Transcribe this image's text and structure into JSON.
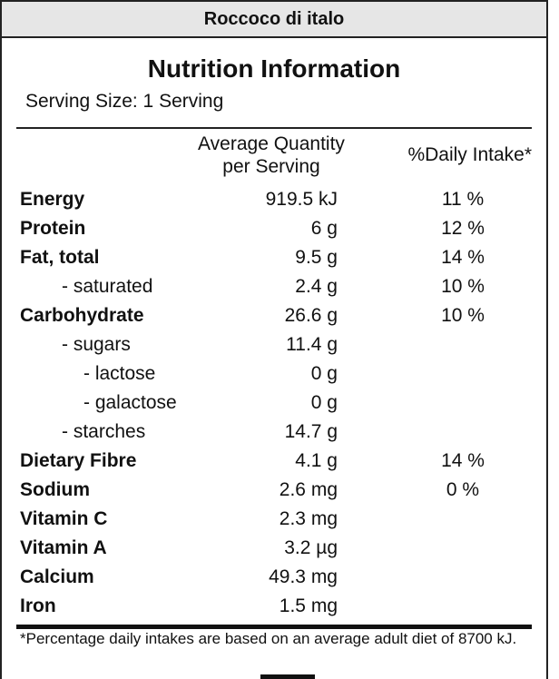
{
  "product_name": "Roccoco di italo",
  "title": "Nutrition Information",
  "serving_size": "Serving Size: 1 Serving",
  "headers": {
    "quantity_line1": "Average Quantity",
    "quantity_line2": "per Serving",
    "daily_intake": "%Daily Intake*"
  },
  "rows": [
    {
      "name": "Energy",
      "qty": "919.5 kJ",
      "di": "11 %"
    },
    {
      "name": "Protein",
      "qty": "6 g",
      "di": "12 %"
    },
    {
      "name": "Fat, total",
      "qty": "9.5 g",
      "di": "14 %"
    },
    {
      "name": "- saturated",
      "qty": "2.4 g",
      "di": "10 %"
    },
    {
      "name": "Carbohydrate",
      "qty": "26.6 g",
      "di": "10 %"
    },
    {
      "name": "- sugars",
      "qty": "11.4 g",
      "di": ""
    },
    {
      "name": "- lactose",
      "qty": "0 g",
      "di": ""
    },
    {
      "name": "- galactose",
      "qty": "0 g",
      "di": ""
    },
    {
      "name": "- starches",
      "qty": "14.7 g",
      "di": ""
    },
    {
      "name": "Dietary Fibre",
      "qty": "4.1 g",
      "di": "14 %"
    },
    {
      "name": "Sodium",
      "qty": "2.6 mg",
      "di": "0 %"
    },
    {
      "name": "Vitamin C",
      "qty": "2.3 mg",
      "di": ""
    },
    {
      "name": "Vitamin A",
      "qty": "3.2 µg",
      "di": ""
    },
    {
      "name": "Calcium",
      "qty": "49.3 mg",
      "di": ""
    },
    {
      "name": "Iron",
      "qty": "1.5 mg",
      "di": ""
    }
  ],
  "footnote": "*Percentage daily intakes are based on an average adult diet of 8700 kJ."
}
